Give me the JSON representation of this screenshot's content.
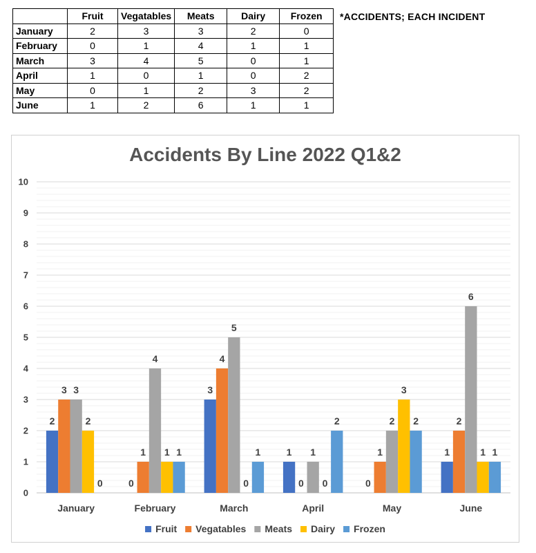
{
  "table": {
    "headers": [
      "",
      "Fruit",
      "Vegatables",
      "Meats",
      "Dairy",
      "Frozen"
    ],
    "rows": [
      {
        "month": "January",
        "values": [
          "2",
          "3",
          "3",
          "2",
          "0"
        ]
      },
      {
        "month": "February",
        "values": [
          "0",
          "1",
          "4",
          "1",
          "1"
        ]
      },
      {
        "month": "March",
        "values": [
          "3",
          "4",
          "5",
          "0",
          "1"
        ]
      },
      {
        "month": "April",
        "values": [
          "1",
          "0",
          "1",
          "0",
          "2"
        ]
      },
      {
        "month": "May",
        "values": [
          "0",
          "1",
          "2",
          "3",
          "2"
        ]
      },
      {
        "month": "June",
        "values": [
          "1",
          "2",
          "6",
          "1",
          "1"
        ]
      }
    ]
  },
  "note": "*ACCIDENTS; EACH INCIDENT",
  "chart_data": {
    "type": "bar",
    "title": "Accidents By Line 2022 Q1&2",
    "categories": [
      "January",
      "February",
      "March",
      "April",
      "May",
      "June"
    ],
    "series": [
      {
        "name": "Fruit",
        "color": "#4472c4",
        "values": [
          2,
          0,
          3,
          1,
          0,
          1
        ]
      },
      {
        "name": "Vegatables",
        "color": "#ed7d31",
        "values": [
          3,
          1,
          4,
          0,
          1,
          2
        ]
      },
      {
        "name": "Meats",
        "color": "#a5a5a5",
        "values": [
          3,
          4,
          5,
          1,
          2,
          6
        ]
      },
      {
        "name": "Dairy",
        "color": "#ffc000",
        "values": [
          2,
          1,
          0,
          0,
          3,
          1
        ]
      },
      {
        "name": "Frozen",
        "color": "#5b9bd5",
        "values": [
          0,
          1,
          1,
          2,
          2,
          1
        ]
      }
    ],
    "ylim": [
      0,
      10
    ],
    "yticks": [
      0,
      1,
      2,
      3,
      4,
      5,
      6,
      7,
      8,
      9,
      10
    ],
    "grid": true,
    "legend": "bottom"
  }
}
